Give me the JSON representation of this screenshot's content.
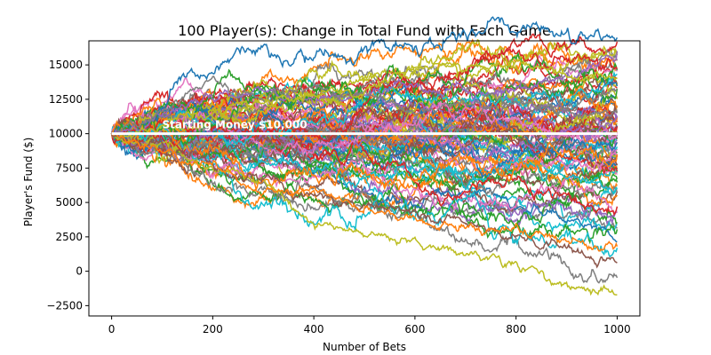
{
  "chart_data": {
    "type": "line",
    "title": "100 Player(s): Change in Total Fund with Each Game",
    "xlabel": "Number of Bets",
    "ylabel": "Player's Fund ($)",
    "xlim": [
      -45,
      1045
    ],
    "ylim": [
      -3250,
      16750
    ],
    "x_ticks": [
      0,
      200,
      400,
      600,
      800,
      1000
    ],
    "x_tick_labels": [
      "0",
      "200",
      "400",
      "600",
      "800",
      "1000"
    ],
    "y_ticks": [
      -2500,
      0,
      2500,
      5000,
      7500,
      10000,
      12500,
      15000
    ],
    "y_tick_labels": [
      "−2500",
      "0",
      "2500",
      "5000",
      "7500",
      "10000",
      "12500",
      "15000"
    ],
    "grid": false,
    "legend": "none",
    "num_series": 100,
    "steps_per_series": 1000,
    "starting_value": 10000,
    "extreme_series": [
      {
        "x": [
          0,
          100,
          200,
          300,
          400,
          500,
          600,
          700,
          800,
          900,
          1000
        ],
        "y": [
          10000,
          9300,
          7600,
          6700,
          3400,
          3000,
          2400,
          1200,
          400,
          -1100,
          -1700
        ],
        "color": "#bcbd22"
      },
      {
        "x": [
          0,
          100,
          200,
          300,
          400,
          500,
          600,
          700,
          800,
          900,
          1000
        ],
        "y": [
          10000,
          11400,
          12700,
          13200,
          12400,
          12800,
          13500,
          12700,
          13000,
          14400,
          16000
        ],
        "color": "#9467bd"
      },
      {
        "x": [
          0,
          100,
          200,
          300,
          400,
          500,
          600,
          700,
          800,
          900,
          1000
        ],
        "y": [
          10000,
          11900,
          14200,
          12600,
          13300,
          12900,
          12000,
          12800,
          12400,
          11700,
          11500
        ],
        "color": "#7f7f7f"
      },
      {
        "x": [
          0,
          100,
          200,
          300,
          400,
          500,
          600,
          700,
          800,
          900,
          1000
        ],
        "y": [
          10000,
          10600,
          11700,
          12300,
          12800,
          13300,
          14400,
          14700,
          15400,
          14300,
          14000
        ],
        "color": "#bcbd22"
      },
      {
        "x": [
          0,
          100,
          200,
          300,
          400,
          500,
          600,
          700,
          800,
          900,
          1000
        ],
        "y": [
          10000,
          9000,
          7700,
          6400,
          5600,
          4600,
          4200,
          3400,
          2800,
          1900,
          600
        ],
        "color": "#8c564b"
      },
      {
        "x": [
          0,
          100,
          200,
          300,
          400,
          500,
          600,
          700,
          800,
          900,
          1000
        ],
        "y": [
          10000,
          8800,
          7400,
          6000,
          5900,
          4500,
          4000,
          3200,
          3100,
          2100,
          1800
        ],
        "color": "#ff7f0e"
      }
    ],
    "reference_line": {
      "y": 10000,
      "x": [
        0,
        1000
      ],
      "color": "#ffffff"
    },
    "annotation": {
      "text": "Starting Money $10,000",
      "x": 100,
      "y": 10400
    },
    "palette": [
      "#1f77b4",
      "#ff7f0e",
      "#2ca02c",
      "#d62728",
      "#9467bd",
      "#8c564b",
      "#e377c2",
      "#7f7f7f",
      "#bcbd22",
      "#17becf"
    ]
  }
}
